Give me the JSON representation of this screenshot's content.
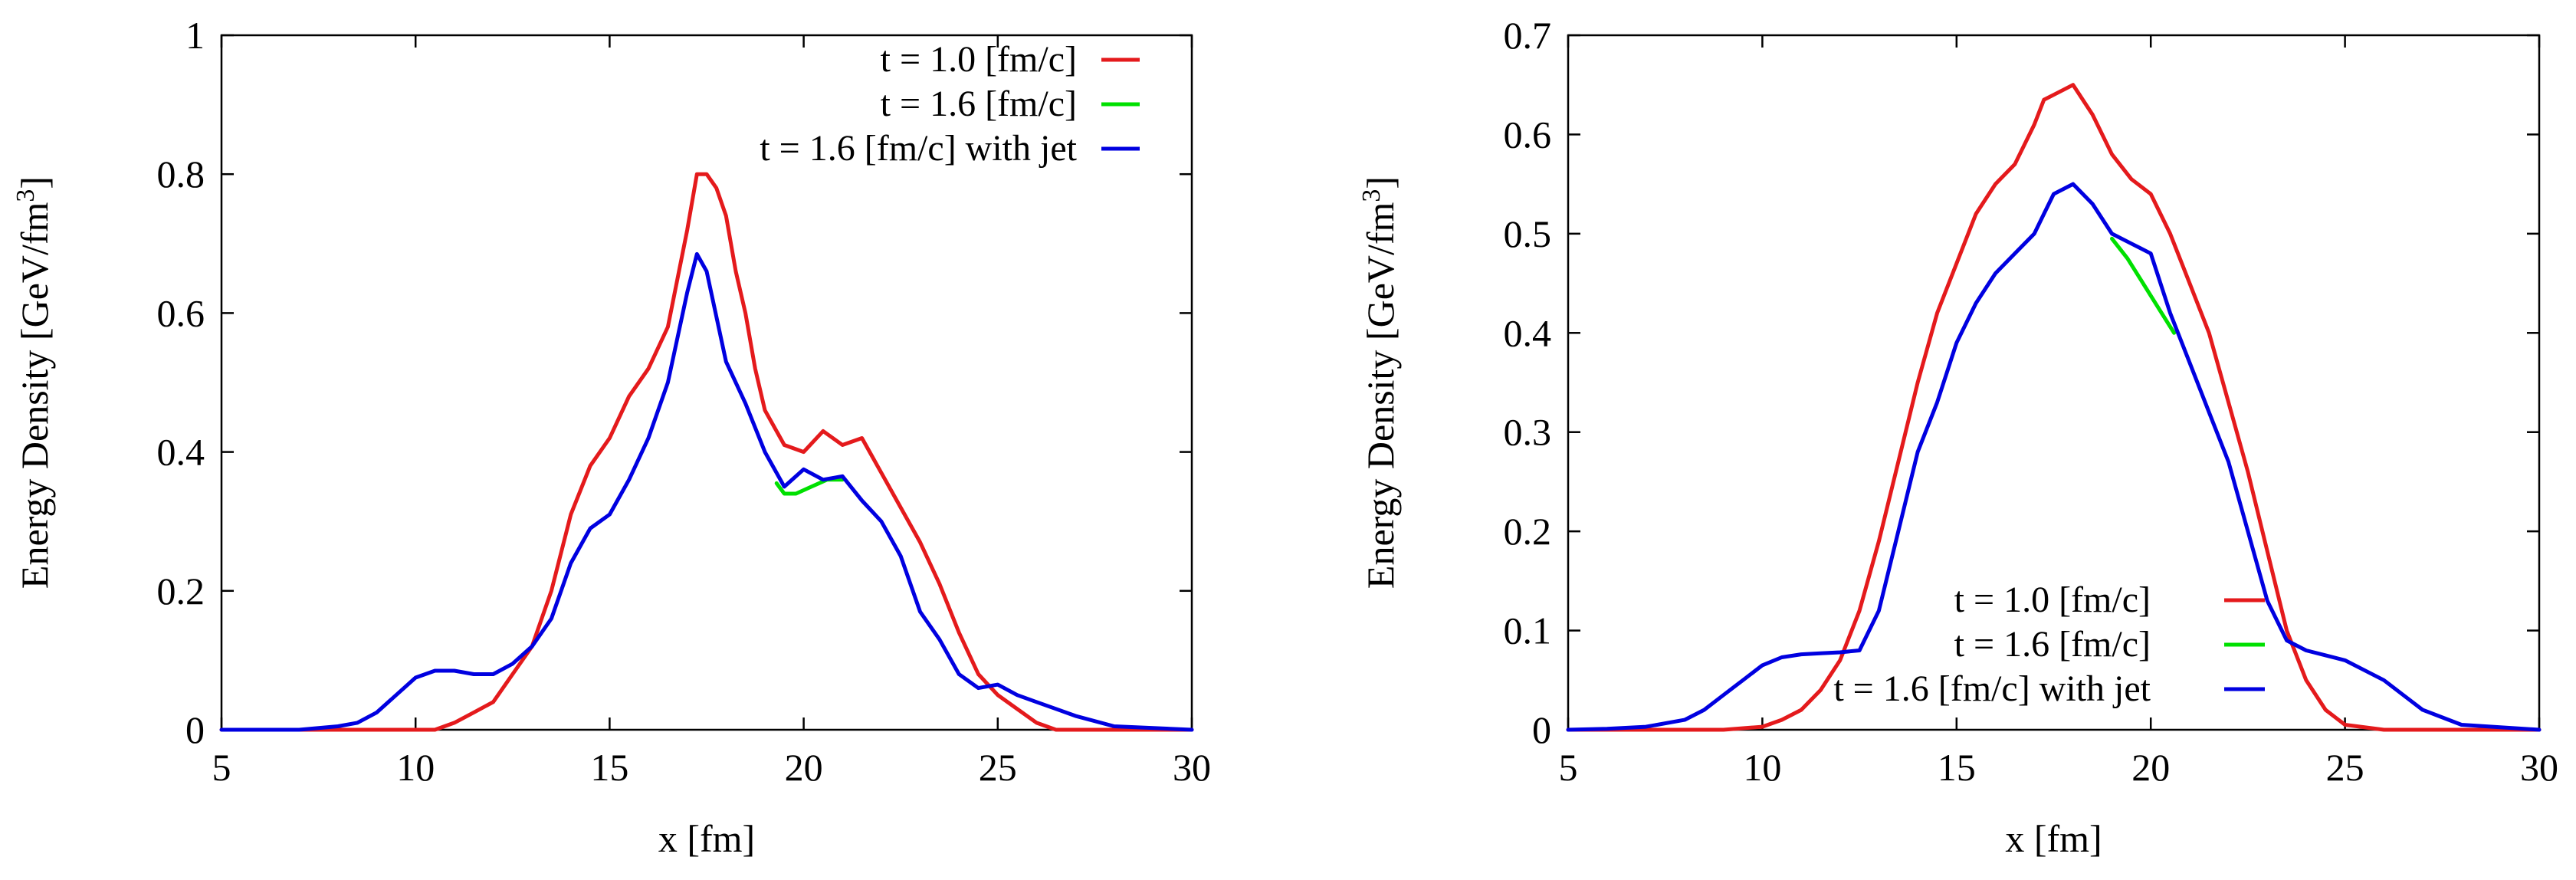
{
  "chart_data": [
    {
      "type": "line",
      "xlabel": "x [fm]",
      "ylabel": "Energy Density [GeV/fm",
      "ylabel_sup": "3",
      "ylabel_end": "]",
      "xlim": [
        5,
        30
      ],
      "ylim": [
        0,
        1
      ],
      "xticks": [
        5,
        10,
        15,
        20,
        25,
        30
      ],
      "xtick_labels": [
        "5",
        "10",
        "15",
        "20",
        "25",
        "30"
      ],
      "yticks": [
        0,
        0.2,
        0.4,
        0.6,
        0.8,
        1
      ],
      "ytick_labels": [
        "0",
        "0.2",
        "0.4",
        "0.6",
        "0.8",
        "1"
      ],
      "legend_position": "top-right",
      "series": [
        {
          "name": "t = 1.0 [fm/c]",
          "color": "#e41a1c",
          "x": [
            5,
            8,
            10,
            10.5,
            11,
            11.5,
            12,
            12.5,
            13,
            13.5,
            14,
            14.5,
            15,
            15.5,
            16,
            16.5,
            17,
            17.25,
            17.5,
            17.75,
            18,
            18.25,
            18.5,
            18.75,
            19,
            19.5,
            20,
            20.5,
            21,
            21.5,
            22,
            22.5,
            23,
            23.5,
            24,
            24.5,
            25,
            25.5,
            26,
            26.5,
            30
          ],
          "y": [
            0,
            0,
            0,
            0,
            0.01,
            0.025,
            0.04,
            0.08,
            0.12,
            0.2,
            0.31,
            0.38,
            0.42,
            0.48,
            0.52,
            0.58,
            0.72,
            0.8,
            0.8,
            0.78,
            0.74,
            0.66,
            0.6,
            0.52,
            0.46,
            0.41,
            0.4,
            0.43,
            0.41,
            0.42,
            0.37,
            0.32,
            0.27,
            0.21,
            0.14,
            0.08,
            0.05,
            0.03,
            0.01,
            0,
            0
          ]
        },
        {
          "name": "t = 1.6 [fm/c]",
          "color": "#00e000",
          "x": [
            19.3,
            19.5,
            19.8,
            20.2,
            20.6,
            21
          ],
          "y": [
            0.355,
            0.34,
            0.34,
            0.35,
            0.36,
            0.36
          ]
        },
        {
          "name": "t = 1.6 [fm/c] with jet",
          "color": "#0000e0",
          "x": [
            5,
            7,
            8,
            8.5,
            9,
            9.5,
            10,
            10.5,
            11,
            11.5,
            12,
            12.5,
            13,
            13.5,
            14,
            14.5,
            15,
            15.5,
            16,
            16.5,
            17,
            17.25,
            17.5,
            18,
            18.5,
            19,
            19.5,
            20,
            20.5,
            21,
            21.5,
            22,
            22.5,
            23,
            23.5,
            24,
            24.5,
            25,
            25.5,
            26,
            26.5,
            27,
            28,
            30
          ],
          "y": [
            0,
            0,
            0.005,
            0.01,
            0.025,
            0.05,
            0.075,
            0.085,
            0.085,
            0.08,
            0.08,
            0.095,
            0.12,
            0.16,
            0.24,
            0.29,
            0.31,
            0.36,
            0.42,
            0.5,
            0.63,
            0.685,
            0.66,
            0.53,
            0.47,
            0.4,
            0.35,
            0.375,
            0.36,
            0.365,
            0.33,
            0.3,
            0.25,
            0.17,
            0.13,
            0.08,
            0.06,
            0.065,
            0.05,
            0.04,
            0.03,
            0.02,
            0.005,
            0
          ]
        }
      ]
    },
    {
      "type": "line",
      "xlabel": "x [fm]",
      "ylabel": "Energy Density [GeV/fm",
      "ylabel_sup": "3",
      "ylabel_end": "]",
      "xlim": [
        5,
        30
      ],
      "ylim": [
        0,
        0.7
      ],
      "xticks": [
        5,
        10,
        15,
        20,
        25,
        30
      ],
      "xtick_labels": [
        "5",
        "10",
        "15",
        "20",
        "25",
        "30"
      ],
      "yticks": [
        0,
        0.1,
        0.2,
        0.3,
        0.4,
        0.5,
        0.6,
        0.7
      ],
      "ytick_labels": [
        "0",
        "0.1",
        "0.2",
        "0.3",
        "0.4",
        "0.5",
        "0.6",
        "0.7"
      ],
      "legend_position": "bottom-right",
      "series": [
        {
          "name": "t = 1.0 [fm/c]",
          "color": "#e41a1c",
          "x": [
            5,
            9,
            10,
            10.5,
            11,
            11.5,
            12,
            12.5,
            13,
            13.5,
            14,
            14.5,
            15,
            15.5,
            16,
            16.5,
            17,
            17.25,
            17.5,
            17.75,
            18,
            18.25,
            18.5,
            19,
            19.5,
            20,
            20.5,
            21,
            21.5,
            22,
            22.5,
            23,
            23.5,
            24,
            24.5,
            25,
            26,
            30
          ],
          "y": [
            0,
            0,
            0.003,
            0.01,
            0.02,
            0.04,
            0.07,
            0.12,
            0.19,
            0.27,
            0.35,
            0.42,
            0.47,
            0.52,
            0.55,
            0.57,
            0.61,
            0.635,
            0.64,
            0.645,
            0.65,
            0.635,
            0.62,
            0.58,
            0.555,
            0.54,
            0.5,
            0.45,
            0.4,
            0.33,
            0.26,
            0.18,
            0.1,
            0.05,
            0.02,
            0.005,
            0,
            0
          ]
        },
        {
          "name": "t = 1.6 [fm/c]",
          "color": "#00e000",
          "x": [
            19,
            19.4,
            19.8,
            20.2,
            20.6
          ],
          "y": [
            0.495,
            0.475,
            0.45,
            0.425,
            0.4
          ]
        },
        {
          "name": "t = 1.6 [fm/c] with jet",
          "color": "#0000e0",
          "x": [
            5,
            6,
            7,
            8,
            8.5,
            9,
            9.5,
            10,
            10.5,
            11,
            11.5,
            12,
            12.5,
            13,
            13.5,
            14,
            14.5,
            15,
            15.5,
            16,
            16.5,
            17,
            17.25,
            17.5,
            18,
            18.5,
            19,
            19.5,
            20,
            20.5,
            21,
            21.5,
            22,
            22.5,
            23,
            23.5,
            24,
            24.5,
            25,
            25.5,
            26,
            26.5,
            27,
            28,
            30
          ],
          "y": [
            0,
            0.001,
            0.003,
            0.01,
            0.02,
            0.035,
            0.05,
            0.065,
            0.073,
            0.076,
            0.077,
            0.078,
            0.08,
            0.12,
            0.2,
            0.28,
            0.33,
            0.39,
            0.43,
            0.46,
            0.48,
            0.5,
            0.52,
            0.54,
            0.55,
            0.53,
            0.5,
            0.49,
            0.48,
            0.42,
            0.37,
            0.32,
            0.27,
            0.2,
            0.13,
            0.09,
            0.08,
            0.075,
            0.07,
            0.06,
            0.05,
            0.035,
            0.02,
            0.005,
            0
          ]
        }
      ]
    }
  ]
}
